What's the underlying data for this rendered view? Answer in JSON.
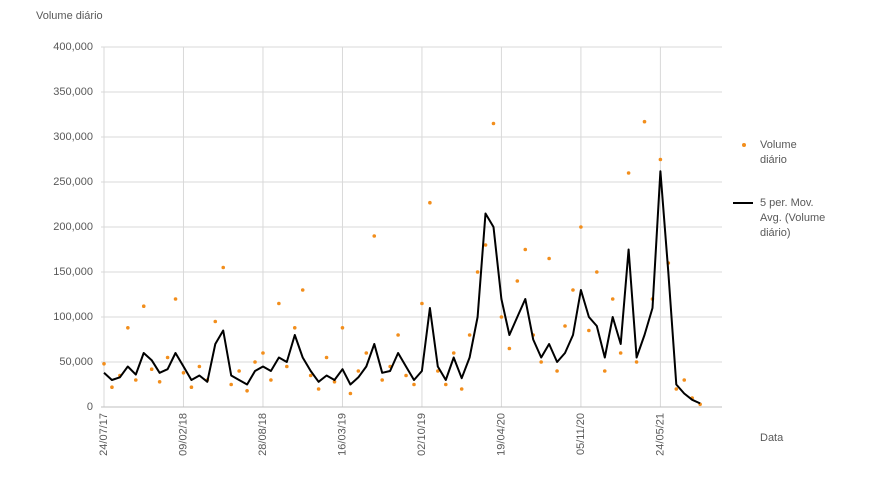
{
  "chart_data": {
    "type": "scatter",
    "y_label": "Volume diário",
    "x_label": "Data",
    "x": [
      "24/07/17",
      "13/08/17",
      "02/09/17",
      "22/09/17",
      "12/10/17",
      "01/11/17",
      "21/11/17",
      "11/12/17",
      "31/12/17",
      "20/01/18",
      "09/02/18",
      "01/03/18",
      "21/03/18",
      "10/04/18",
      "30/04/18",
      "20/05/18",
      "09/06/18",
      "29/06/18",
      "19/07/18",
      "08/08/18",
      "28/08/18",
      "17/09/18",
      "07/10/18",
      "27/10/18",
      "16/11/18",
      "06/12/18",
      "26/12/18",
      "15/01/19",
      "04/02/19",
      "24/02/19",
      "16/03/19",
      "05/04/19",
      "25/04/19",
      "15/05/19",
      "04/06/19",
      "24/06/19",
      "14/07/19",
      "03/08/19",
      "23/08/19",
      "12/09/19",
      "02/10/19",
      "22/10/19",
      "11/11/19",
      "01/12/19",
      "21/12/19",
      "10/01/20",
      "30/01/20",
      "19/02/20",
      "10/03/20",
      "30/03/20",
      "19/04/20",
      "09/05/20",
      "29/05/20",
      "18/06/20",
      "08/07/20",
      "28/07/20",
      "17/08/20",
      "06/09/20",
      "26/09/20",
      "16/10/20",
      "05/11/20",
      "25/11/20",
      "15/12/20",
      "04/01/21",
      "24/01/21",
      "13/02/21",
      "05/03/21",
      "25/03/21",
      "14/04/21",
      "04/05/21",
      "24/05/21",
      "13/06/21",
      "03/07/21",
      "23/07/21",
      "12/08/21",
      "01/09/21"
    ],
    "series": [
      {
        "name": "Volume diário",
        "type": "scatter",
        "color": "#f28e1c",
        "values": [
          48000,
          22000,
          35000,
          88000,
          30000,
          112000,
          42000,
          28000,
          55000,
          120000,
          38000,
          22000,
          45000,
          30000,
          95000,
          155000,
          25000,
          40000,
          18000,
          50000,
          60000,
          30000,
          115000,
          45000,
          88000,
          130000,
          35000,
          20000,
          55000,
          28000,
          88000,
          15000,
          40000,
          60000,
          190000,
          30000,
          45000,
          80000,
          35000,
          25000,
          115000,
          227000,
          40000,
          25000,
          60000,
          20000,
          80000,
          150000,
          180000,
          315000,
          100000,
          65000,
          140000,
          175000,
          80000,
          50000,
          165000,
          40000,
          90000,
          130000,
          200000,
          85000,
          150000,
          40000,
          120000,
          60000,
          260000,
          50000,
          317000,
          120000,
          275000,
          160000,
          20000,
          30000,
          10000,
          3000
        ]
      },
      {
        "name": "5 per. Mov. Avg. (Volume diário)",
        "type": "line",
        "color": "#000000",
        "values": [
          38000,
          30000,
          33000,
          45000,
          36000,
          60000,
          52000,
          38000,
          42000,
          60000,
          45000,
          30000,
          35000,
          28000,
          70000,
          85000,
          35000,
          30000,
          25000,
          40000,
          45000,
          40000,
          55000,
          50000,
          80000,
          55000,
          40000,
          28000,
          35000,
          30000,
          42000,
          25000,
          33000,
          45000,
          70000,
          38000,
          40000,
          60000,
          45000,
          30000,
          40000,
          110000,
          45000,
          30000,
          55000,
          32000,
          55000,
          100000,
          215000,
          200000,
          120000,
          80000,
          100000,
          120000,
          75000,
          55000,
          70000,
          50000,
          60000,
          80000,
          130000,
          100000,
          90000,
          55000,
          100000,
          70000,
          175000,
          55000,
          80000,
          110000,
          262000,
          150000,
          25000,
          15000,
          8000,
          4000
        ]
      }
    ],
    "xlim": [
      "24/07/17",
      "26/10/21"
    ],
    "xticks": [
      "24/07/17",
      "09/02/18",
      "28/08/18",
      "16/03/19",
      "02/10/19",
      "19/04/20",
      "05/11/20",
      "24/05/21"
    ],
    "ylim": [
      0,
      400000
    ],
    "yticks": [
      0,
      {
        "value": 50000,
        "label": "50,000"
      },
      {
        "value": 100000,
        "label": "100,000"
      },
      {
        "value": 150000,
        "label": "150,000"
      },
      {
        "value": 200000,
        "label": "200,000"
      },
      {
        "value": 250000,
        "label": "250,000"
      },
      {
        "value": 300000,
        "label": "300,000"
      },
      {
        "value": 350000,
        "label": "350,000"
      },
      {
        "value": 400000,
        "label": "400,000"
      }
    ],
    "grid": true,
    "legend": "right"
  }
}
